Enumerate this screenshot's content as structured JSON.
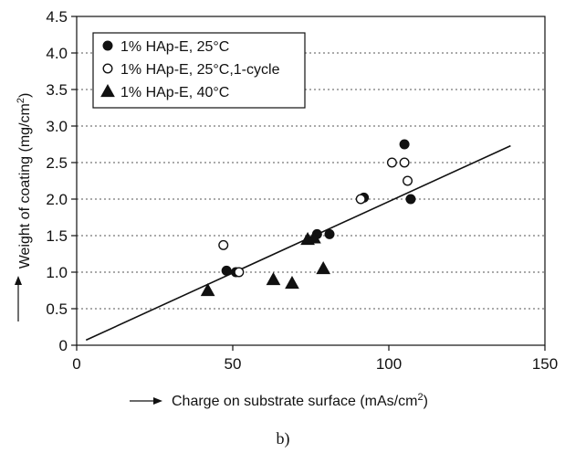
{
  "chart_data": {
    "type": "scatter",
    "xlabel": "Charge on substrate surface (mAs/cm",
    "xlabel_sup": "2",
    "xlabel_close": ")",
    "ylabel": "Weight of coating (mg/cm",
    "ylabel_sup": "2",
    "ylabel_close": ")",
    "caption": "b)",
    "xlim": [
      0,
      150
    ],
    "ylim": [
      0,
      4.5
    ],
    "x_ticks": [
      0,
      50,
      100,
      150
    ],
    "x_tick_labels": [
      "0",
      "50",
      "100",
      "150"
    ],
    "y_ticks": [
      0,
      0.5,
      1.0,
      1.5,
      2.0,
      2.5,
      3.0,
      3.5,
      4.0,
      4.5
    ],
    "y_tick_labels": [
      "0",
      "0.5",
      "1.0",
      "1.5",
      "2.0",
      "2.5",
      "3.0",
      "3.5",
      "4.0",
      "4.5"
    ],
    "grid": "horizontal dotted",
    "legend_position": "top-left",
    "series": [
      {
        "name": "1% HAp-E, 25°C",
        "marker": "filled-circle",
        "points": [
          [
            48,
            1.02
          ],
          [
            51,
            1.0
          ],
          [
            77,
            1.52
          ],
          [
            81,
            1.52
          ],
          [
            92,
            2.02
          ],
          [
            105,
            2.75
          ],
          [
            107,
            2.0
          ]
        ]
      },
      {
        "name": "1% HAp-E, 25°C,1-cycle",
        "marker": "open-circle",
        "points": [
          [
            47,
            1.37
          ],
          [
            52,
            1.0
          ],
          [
            91,
            2.0
          ],
          [
            101,
            2.5
          ],
          [
            105,
            2.5
          ],
          [
            106,
            2.25
          ]
        ]
      },
      {
        "name": "1% HAp-E, 40°C",
        "marker": "filled-triangle",
        "points": [
          [
            42,
            0.75
          ],
          [
            63,
            0.9
          ],
          [
            69,
            0.85
          ],
          [
            74,
            1.45
          ],
          [
            76,
            1.47
          ],
          [
            79,
            1.05
          ]
        ]
      }
    ],
    "fit_line": {
      "x": [
        3,
        139
      ],
      "y": [
        0.07,
        2.73
      ]
    }
  }
}
